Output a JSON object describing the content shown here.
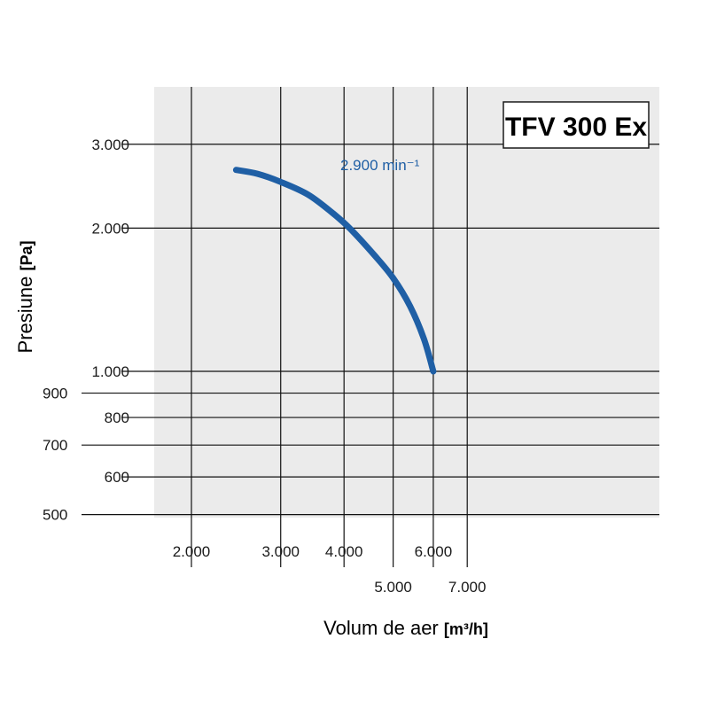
{
  "chart_data": {
    "type": "line",
    "title": "TFV 300 Ex",
    "xlabel": "Volum de aer",
    "xlabel_unit": "[m³/h]",
    "ylabel": "Presiune",
    "ylabel_unit": "[Pa]",
    "x_scale": "log",
    "y_scale": "log",
    "xlim": [
      1800,
      7400
    ],
    "ylim": [
      500,
      3700
    ],
    "grid": true,
    "background": "#ebebeb",
    "x_ticks": [
      {
        "value": 2000,
        "label": "2.000"
      },
      {
        "value": 3000,
        "label": "3.000"
      },
      {
        "value": 4000,
        "label": "4.000"
      },
      {
        "value": 5000,
        "label": "5.000"
      },
      {
        "value": 6000,
        "label": "6.000"
      },
      {
        "value": 7000,
        "label": "7.000"
      }
    ],
    "y_ticks": [
      {
        "value": 500,
        "label": "500"
      },
      {
        "value": 600,
        "label": "600"
      },
      {
        "value": 700,
        "label": "700"
      },
      {
        "value": 800,
        "label": "800"
      },
      {
        "value": 900,
        "label": "900"
      },
      {
        "value": 1000,
        "label": "1.000"
      },
      {
        "value": 2000,
        "label": "2.000"
      },
      {
        "value": 3000,
        "label": "3.000"
      }
    ],
    "series": [
      {
        "name": "2.900 min⁻¹",
        "color": "#1f5fa5",
        "x": [
          2450,
          2700,
          3000,
          3400,
          3800,
          4100,
          4600,
          5000,
          5400,
          5750,
          6000
        ],
        "y": [
          2650,
          2600,
          2500,
          2350,
          2150,
          2000,
          1750,
          1570,
          1370,
          1170,
          1000
        ]
      }
    ]
  }
}
